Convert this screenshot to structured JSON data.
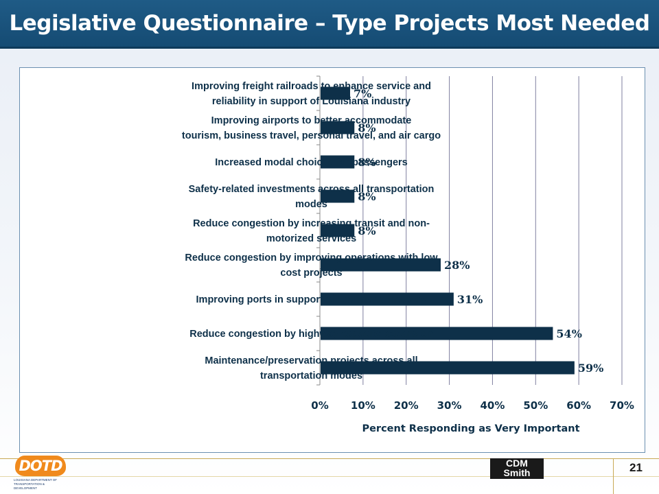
{
  "header": {
    "title": "Legislative Questionnaire – Type Projects Most Needed"
  },
  "footer": {
    "page_number": "21",
    "dotd_logo_text": "DOTD",
    "dotd_logo_subtext": "Louisiana Department of Transportation & Development",
    "cdm_logo_line1": "CDM",
    "cdm_logo_line2": "Smith"
  },
  "colors": {
    "bar": "#0e3049",
    "title_bar": "#1a5480",
    "gridline": "#7f7f9f"
  },
  "chart_data": {
    "type": "bar",
    "orientation": "horizontal",
    "categories": [
      [
        "Improving freight railroads to enhance service and",
        "reliability in support of Louisiana industry"
      ],
      [
        "Improving airports to better accommodate",
        "tourism, business travel, personal travel, and air cargo"
      ],
      [
        "Increased modal choices for passengers"
      ],
      [
        "Safety-related investments across all transportation",
        "modes"
      ],
      [
        "Reduce congestion by increasing transit and non-",
        "motorized services"
      ],
      [
        "Reduce congestion by improving operations with  low",
        "cost projects"
      ],
      [
        "Improving ports in support of Louisiana industry"
      ],
      [
        "Reduce congestion by highway capacity expansion"
      ],
      [
        "Maintenance/preservation projects across all",
        "transportation modes"
      ]
    ],
    "values": [
      7,
      8,
      8,
      8,
      8,
      28,
      31,
      54,
      59
    ],
    "data_labels": [
      "7%",
      "8%",
      "8%",
      "8%",
      "8%",
      "28%",
      "31%",
      "54%",
      "59%"
    ],
    "xlabel": "Percent Responding  as Very Important",
    "xlim": [
      0,
      70
    ],
    "xticks": [
      "0%",
      "10%",
      "20%",
      "30%",
      "40%",
      "50%",
      "60%",
      "70%"
    ],
    "grid": true,
    "legend": "none"
  }
}
